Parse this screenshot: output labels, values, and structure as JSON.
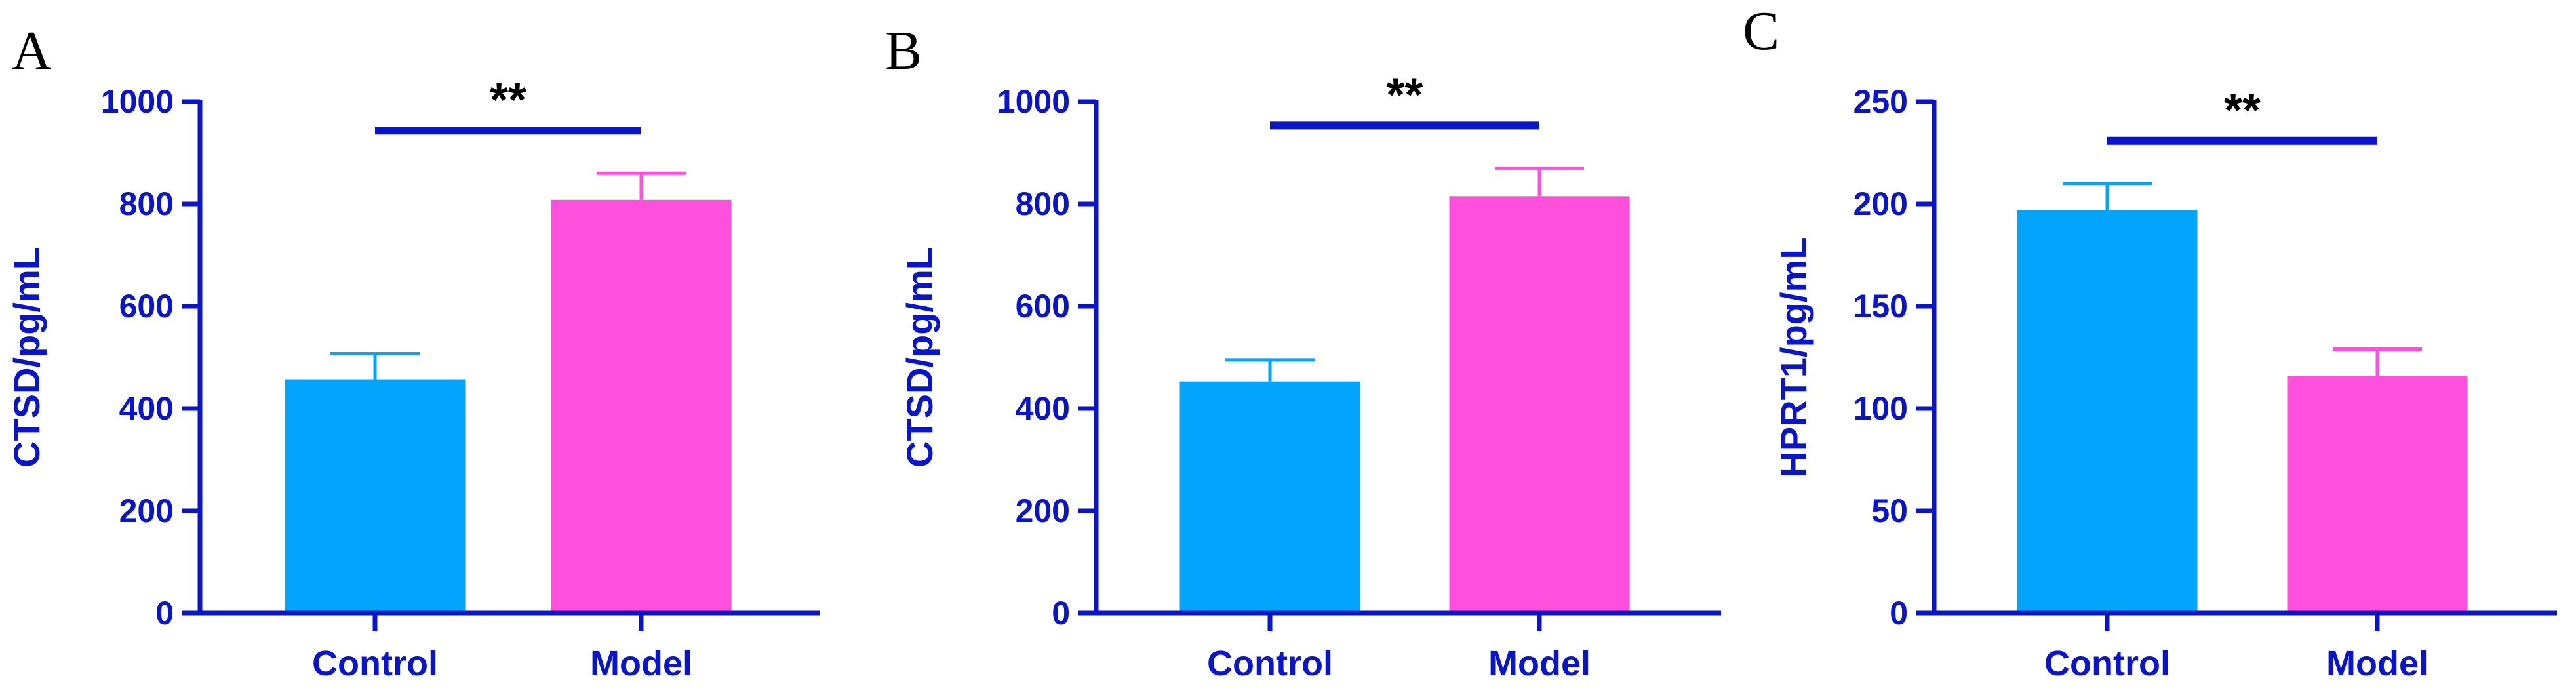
{
  "colors": {
    "axis": "#0a14c8",
    "control_bar": "#03a5fc",
    "model_bar": "#ff4fdc",
    "sig_line": "#0a14c8"
  },
  "chart_data": [
    {
      "panel": "A",
      "type": "bar",
      "categories": [
        "Control",
        "Model"
      ],
      "values": [
        457,
        808
      ],
      "errors": [
        50,
        52
      ],
      "ylabel": "CTSD/pg/mL",
      "ylim": [
        0,
        1000
      ],
      "yticks": [
        0,
        200,
        400,
        600,
        800,
        1000
      ],
      "significance": "**"
    },
    {
      "panel": "B",
      "type": "bar",
      "categories": [
        "Control",
        "Model"
      ],
      "values": [
        453,
        815
      ],
      "errors": [
        42,
        55
      ],
      "ylabel": "CTSD/pg/mL",
      "ylim": [
        0,
        1000
      ],
      "yticks": [
        0,
        200,
        400,
        600,
        800,
        1000
      ],
      "significance": "**"
    },
    {
      "panel": "C",
      "type": "bar",
      "categories": [
        "Control",
        "Model"
      ],
      "values": [
        197,
        116
      ],
      "errors": [
        13,
        13
      ],
      "ylabel": "HPRT1/pg/mL",
      "ylim": [
        0,
        250
      ],
      "yticks": [
        0,
        50,
        100,
        150,
        200,
        250
      ],
      "significance": "**"
    }
  ]
}
